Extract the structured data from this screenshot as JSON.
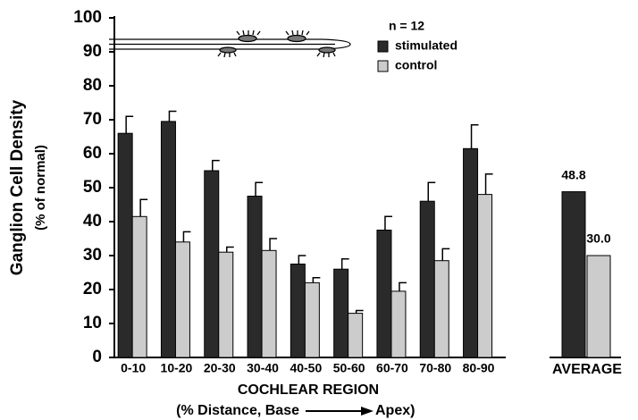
{
  "chart_data": {
    "type": "bar",
    "y_label": "Ganglion Cell Density",
    "y_sublabel": "(% of normal)",
    "x_label": "COCHLEAR REGION",
    "x_sublabel_left": "(% Distance,  Base",
    "x_sublabel_right": "Apex)",
    "legend_title": "n = 12",
    "categories": [
      "0-10",
      "10-20",
      "20-30",
      "30-40",
      "40-50",
      "50-60",
      "60-70",
      "70-80",
      "80-90"
    ],
    "series": [
      {
        "name": "stimulated",
        "color": "#2a2a2a",
        "values": [
          66,
          69.5,
          55,
          47.5,
          27.5,
          26,
          37.5,
          46,
          61.5
        ],
        "errors": [
          5,
          3,
          3,
          4,
          2.5,
          3,
          4,
          5.5,
          7
        ]
      },
      {
        "name": "control",
        "color": "#cccccc",
        "values": [
          41.5,
          34,
          31,
          31.5,
          22,
          13,
          19.5,
          28.5,
          48
        ],
        "errors": [
          5,
          3,
          1.5,
          3.5,
          1.5,
          0.8,
          2.5,
          3.5,
          6
        ]
      }
    ],
    "average": {
      "label": "AVERAGE",
      "values": [
        48.8,
        30.0
      ],
      "value_labels": [
        "48.8",
        "30.0"
      ]
    },
    "ylim": [
      0,
      100
    ],
    "yticks": [
      0,
      10,
      20,
      30,
      40,
      50,
      60,
      70,
      80,
      90,
      100
    ]
  }
}
